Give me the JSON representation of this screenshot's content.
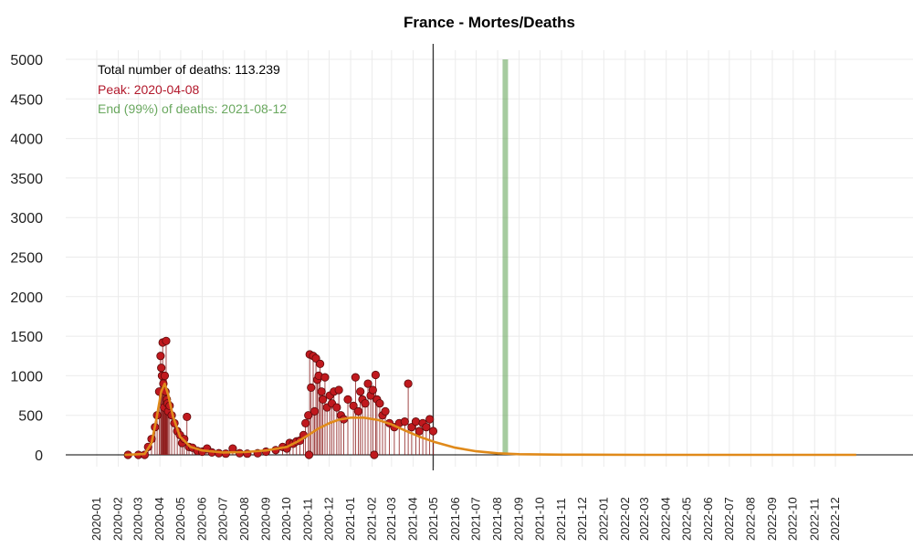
{
  "chart_data": {
    "type": "scatter",
    "title": "France - Mortes/Deaths",
    "xlabel": "",
    "ylabel": "",
    "ylim": [
      0,
      5000
    ],
    "yticks": [
      0,
      500,
      1000,
      1500,
      2000,
      2500,
      3000,
      3500,
      4000,
      4500,
      5000
    ],
    "x_tick_labels": [
      "2020-01",
      "2020-02",
      "2020-03",
      "2020-04",
      "2020-05",
      "2020-06",
      "2020-07",
      "2020-08",
      "2020-09",
      "2020-10",
      "2020-11",
      "2020-12",
      "2021-01",
      "2021-02",
      "2021-03",
      "2021-04",
      "2021-05",
      "2021-06",
      "2021-07",
      "2021-08",
      "2021-09",
      "2021-10",
      "2021-11",
      "2021-12",
      "2022-01",
      "2022-02",
      "2022-03",
      "2022-04",
      "2022-05",
      "2022-06",
      "2022-07",
      "2022-08",
      "2022-09",
      "2022-10",
      "2022-11",
      "2022-12"
    ],
    "grid": true,
    "annotations": {
      "total": "Total number of deaths: 113.239",
      "peak": "Peak: 2020-04-08",
      "end": "End (99%) of deaths: 2021-08-12",
      "data_end_date": "2021-04-30",
      "colors": {
        "total": "#000000",
        "peak": "#b2182b",
        "end": "#6aa85f"
      }
    },
    "series": [
      {
        "type": "points",
        "color": "#c0191e",
        "points": [
          [
            "2020-02-15",
            0
          ],
          [
            "2020-03-01",
            0
          ],
          [
            "2020-03-10",
            0
          ],
          [
            "2020-03-15",
            100
          ],
          [
            "2020-03-20",
            200
          ],
          [
            "2020-03-25",
            350
          ],
          [
            "2020-03-28",
            500
          ],
          [
            "2020-03-31",
            800
          ],
          [
            "2020-04-02",
            1250
          ],
          [
            "2020-04-03",
            1100
          ],
          [
            "2020-04-04",
            1000
          ],
          [
            "2020-04-05",
            1420
          ],
          [
            "2020-04-06",
            900
          ],
          [
            "2020-04-07",
            600
          ],
          [
            "2020-04-08",
            1000
          ],
          [
            "2020-04-09",
            800
          ],
          [
            "2020-04-10",
            1440
          ],
          [
            "2020-04-11",
            700
          ],
          [
            "2020-04-12",
            650
          ],
          [
            "2020-04-13",
            550
          ],
          [
            "2020-04-15",
            620
          ],
          [
            "2020-04-18",
            500
          ],
          [
            "2020-04-22",
            400
          ],
          [
            "2020-04-26",
            300
          ],
          [
            "2020-04-30",
            250
          ],
          [
            "2020-05-03",
            150
          ],
          [
            "2020-05-06",
            200
          ],
          [
            "2020-05-10",
            480
          ],
          [
            "2020-05-13",
            100
          ],
          [
            "2020-05-18",
            90
          ],
          [
            "2020-05-25",
            50
          ],
          [
            "2020-06-01",
            40
          ],
          [
            "2020-06-08",
            80
          ],
          [
            "2020-06-15",
            30
          ],
          [
            "2020-06-25",
            20
          ],
          [
            "2020-07-05",
            15
          ],
          [
            "2020-07-15",
            80
          ],
          [
            "2020-07-25",
            20
          ],
          [
            "2020-08-05",
            15
          ],
          [
            "2020-08-20",
            20
          ],
          [
            "2020-09-01",
            40
          ],
          [
            "2020-09-15",
            60
          ],
          [
            "2020-09-25",
            100
          ],
          [
            "2020-10-01",
            80
          ],
          [
            "2020-10-05",
            150
          ],
          [
            "2020-10-10",
            140
          ],
          [
            "2020-10-15",
            170
          ],
          [
            "2020-10-20",
            180
          ],
          [
            "2020-10-25",
            250
          ],
          [
            "2020-10-28",
            400
          ],
          [
            "2020-11-01",
            500
          ],
          [
            "2020-11-02",
            0
          ],
          [
            "2020-11-03",
            1270
          ],
          [
            "2020-11-05",
            850
          ],
          [
            "2020-11-08",
            1250
          ],
          [
            "2020-11-10",
            550
          ],
          [
            "2020-11-12",
            1220
          ],
          [
            "2020-11-14",
            950
          ],
          [
            "2020-11-16",
            1000
          ],
          [
            "2020-11-18",
            1150
          ],
          [
            "2020-11-20",
            800
          ],
          [
            "2020-11-22",
            700
          ],
          [
            "2020-11-25",
            980
          ],
          [
            "2020-11-28",
            600
          ],
          [
            "2020-12-02",
            750
          ],
          [
            "2020-12-05",
            650
          ],
          [
            "2020-12-08",
            800
          ],
          [
            "2020-12-12",
            600
          ],
          [
            "2020-12-15",
            820
          ],
          [
            "2020-12-18",
            500
          ],
          [
            "2020-12-22",
            450
          ],
          [
            "2020-12-28",
            700
          ],
          [
            "2021-01-05",
            620
          ],
          [
            "2021-01-08",
            980
          ],
          [
            "2021-01-12",
            550
          ],
          [
            "2021-01-15",
            800
          ],
          [
            "2021-01-18",
            700
          ],
          [
            "2021-01-22",
            650
          ],
          [
            "2021-01-26",
            900
          ],
          [
            "2021-01-30",
            750
          ],
          [
            "2021-02-02",
            820
          ],
          [
            "2021-02-04",
            0
          ],
          [
            "2021-02-06",
            1010
          ],
          [
            "2021-02-08",
            700
          ],
          [
            "2021-02-12",
            650
          ],
          [
            "2021-02-16",
            500
          ],
          [
            "2021-02-20",
            550
          ],
          [
            "2021-02-26",
            400
          ],
          [
            "2021-03-05",
            350
          ],
          [
            "2021-03-12",
            400
          ],
          [
            "2021-03-20",
            420
          ],
          [
            "2021-03-25",
            900
          ],
          [
            "2021-03-30",
            350
          ],
          [
            "2021-04-05",
            420
          ],
          [
            "2021-04-10",
            300
          ],
          [
            "2021-04-15",
            400
          ],
          [
            "2021-04-20",
            350
          ],
          [
            "2021-04-25",
            450
          ],
          [
            "2021-04-30",
            300
          ]
        ]
      },
      {
        "type": "curve",
        "color": "#e08a1a",
        "points": [
          [
            "2020-02-10",
            0
          ],
          [
            "2020-03-10",
            10
          ],
          [
            "2020-03-20",
            150
          ],
          [
            "2020-03-27",
            450
          ],
          [
            "2020-04-03",
            800
          ],
          [
            "2020-04-08",
            900
          ],
          [
            "2020-04-13",
            760
          ],
          [
            "2020-04-20",
            480
          ],
          [
            "2020-04-30",
            230
          ],
          [
            "2020-05-15",
            100
          ],
          [
            "2020-06-01",
            55
          ],
          [
            "2020-07-01",
            30
          ],
          [
            "2020-08-01",
            35
          ],
          [
            "2020-09-01",
            55
          ],
          [
            "2020-10-01",
            100
          ],
          [
            "2020-10-15",
            160
          ],
          [
            "2020-11-01",
            250
          ],
          [
            "2020-11-15",
            330
          ],
          [
            "2020-12-01",
            400
          ],
          [
            "2020-12-15",
            445
          ],
          [
            "2021-01-01",
            470
          ],
          [
            "2021-01-20",
            470
          ],
          [
            "2021-02-10",
            440
          ],
          [
            "2021-03-01",
            385
          ],
          [
            "2021-03-20",
            310
          ],
          [
            "2021-04-10",
            230
          ],
          [
            "2021-05-01",
            165
          ],
          [
            "2021-06-01",
            90
          ],
          [
            "2021-07-01",
            45
          ],
          [
            "2021-08-01",
            20
          ],
          [
            "2021-09-01",
            8
          ],
          [
            "2021-11-01",
            2
          ],
          [
            "2022-03-01",
            0
          ],
          [
            "2022-12-31",
            0
          ]
        ]
      }
    ],
    "peak_band": {
      "from": "2020-04-06",
      "to": "2020-04-11",
      "color": "#cc2020"
    },
    "end_marker": {
      "date": "2021-08-12",
      "color": "#6aa85f"
    },
    "data_end_marker": {
      "date": "2021-04-30",
      "color": "#333333"
    }
  }
}
